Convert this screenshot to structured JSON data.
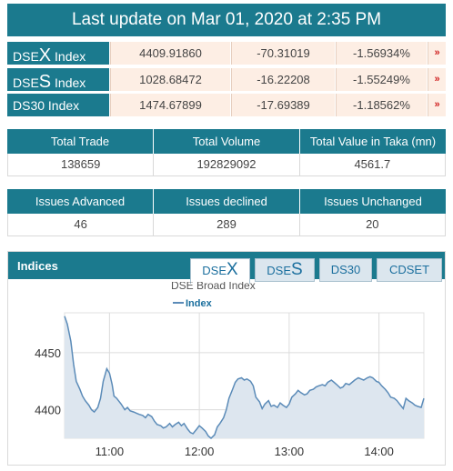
{
  "header": {
    "title": "Last update on Mar 01, 2020 at 2:35 PM"
  },
  "indices_table": [
    {
      "name_prefix": "DSE",
      "name_big": "X",
      "name_suffix": " Index",
      "value": "4409.91860",
      "change": "-70.31019",
      "pct": "-1.56934%",
      "arrow": "»"
    },
    {
      "name_prefix": "DSE",
      "name_big": "S",
      "name_suffix": " Index",
      "value": "1028.68472",
      "change": "-16.22208",
      "pct": "-1.55249%",
      "arrow": "»"
    },
    {
      "name_prefix": "DS30 Index",
      "name_big": "",
      "name_suffix": "",
      "value": "1474.67899",
      "change": "-17.69389",
      "pct": "-1.18562%",
      "arrow": "»"
    }
  ],
  "trade_stats": {
    "headers": [
      "Total Trade",
      "Total Volume",
      "Total Value in Taka (mn)"
    ],
    "values": [
      "138659",
      "192829092",
      "4561.7"
    ]
  },
  "issue_stats": {
    "headers": [
      "Issues Advanced",
      "Issues declined",
      "Issues Unchanged"
    ],
    "values": [
      "46",
      "289",
      "20"
    ]
  },
  "indices_panel": {
    "title": "Indices",
    "tabs": [
      {
        "prefix": "DSE",
        "big": "X",
        "active": true
      },
      {
        "prefix": "DSE",
        "big": "S",
        "active": false
      },
      {
        "prefix": "DS30",
        "big": "",
        "active": false
      },
      {
        "prefix": "CDSET",
        "big": "",
        "active": false
      }
    ]
  },
  "chart_data": {
    "type": "area",
    "title": "DSE Broad Index",
    "legend": "Index",
    "legend_position": "top-left",
    "x_ticks": [
      "11:00",
      "12:00",
      "13:00",
      "14:00"
    ],
    "y_ticks": [
      4400,
      4450
    ],
    "xlim": [
      10.5,
      14.5
    ],
    "ylim": [
      4375,
      4485
    ],
    "grid": true,
    "line_color": "#5b8bb8",
    "fill_color": "#dde6ef",
    "x": [
      10.5,
      10.53,
      10.57,
      10.6,
      10.63,
      10.67,
      10.7,
      10.73,
      10.77,
      10.8,
      10.83,
      10.87,
      10.9,
      10.93,
      10.97,
      11.0,
      11.03,
      11.05,
      11.08,
      11.1,
      11.13,
      11.17,
      11.2,
      11.23,
      11.27,
      11.3,
      11.33,
      11.37,
      11.4,
      11.43,
      11.47,
      11.5,
      11.53,
      11.57,
      11.6,
      11.63,
      11.67,
      11.7,
      11.73,
      11.77,
      11.8,
      11.83,
      11.87,
      11.9,
      11.93,
      11.97,
      12.0,
      12.03,
      12.07,
      12.1,
      12.13,
      12.17,
      12.2,
      12.23,
      12.27,
      12.3,
      12.33,
      12.37,
      12.4,
      12.43,
      12.47,
      12.5,
      12.53,
      12.57,
      12.6,
      12.63,
      12.67,
      12.7,
      12.73,
      12.77,
      12.8,
      12.83,
      12.87,
      12.9,
      12.93,
      12.97,
      13.0,
      13.03,
      13.07,
      13.1,
      13.13,
      13.17,
      13.2,
      13.23,
      13.27,
      13.3,
      13.33,
      13.37,
      13.4,
      13.43,
      13.47,
      13.5,
      13.53,
      13.57,
      13.6,
      13.63,
      13.67,
      13.7,
      13.73,
      13.77,
      13.8,
      13.83,
      13.87,
      13.9,
      13.93,
      13.97,
      14.0,
      14.03,
      14.07,
      14.1,
      14.13,
      14.17,
      14.2,
      14.23,
      14.27,
      14.3,
      14.33,
      14.37,
      14.4,
      14.43,
      14.47,
      14.5
    ],
    "y": [
      4482,
      4475,
      4460,
      4440,
      4425,
      4418,
      4412,
      4408,
      4404,
      4400,
      4398,
      4402,
      4410,
      4425,
      4436,
      4432,
      4422,
      4412,
      4410,
      4408,
      4405,
      4400,
      4402,
      4399,
      4398,
      4397,
      4396,
      4395,
      4393,
      4396,
      4394,
      4390,
      4387,
      4386,
      4384,
      4385,
      4388,
      4385,
      4387,
      4389,
      4386,
      4388,
      4383,
      4380,
      4379,
      4383,
      4386,
      4384,
      4381,
      4377,
      4375,
      4378,
      4385,
      4388,
      4393,
      4400,
      4410,
      4418,
      4424,
      4427,
      4428,
      4426,
      4427,
      4425,
      4421,
      4411,
      4407,
      4401,
      4405,
      4408,
      4403,
      4404,
      4402,
      4406,
      4404,
      4402,
      4405,
      4411,
      4414,
      4417,
      4415,
      4413,
      4414,
      4417,
      4418,
      4420,
      4421,
      4422,
      4421,
      4424,
      4426,
      4424,
      4422,
      4419,
      4420,
      4423,
      4422,
      4424,
      4426,
      4428,
      4427,
      4426,
      4428,
      4429,
      4428,
      4425,
      4424,
      4421,
      4418,
      4415,
      4411,
      4410,
      4408,
      4405,
      4401,
      4410,
      4408,
      4406,
      4404,
      4403,
      4402,
      4410
    ]
  }
}
